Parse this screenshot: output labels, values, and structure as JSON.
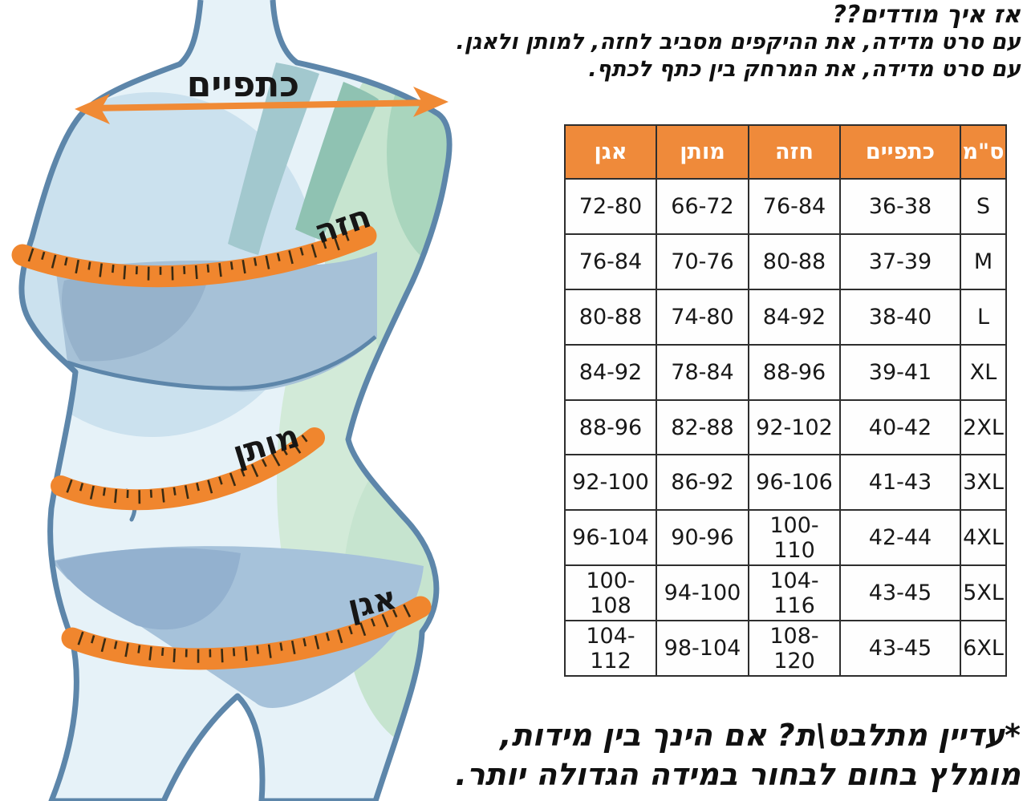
{
  "top_note": {
    "lines": [
      "אז איך מודדים??",
      "עם סרט מדידה, את ההיקפים מסביב לחזה, למותן ולאגן.",
      "עם סרט מדידה, את המרחק בין כתף לכתף."
    ]
  },
  "figure": {
    "labels": {
      "shoulders": "כתפיים",
      "chest": "חזה",
      "waist": "מותן",
      "hips": "אגן"
    },
    "tape_color": "#f0862e",
    "arrow_color": "#f08a35",
    "body_outline_color": "#5d86aa"
  },
  "size_table": {
    "header_bg": "#ef8a3a",
    "header": {
      "hips": "אגן",
      "waist": "מותן",
      "chest": "חזה",
      "shoulders": "כתפיים",
      "unit": "ס\"מ"
    },
    "rows": [
      {
        "hips": "72-80",
        "waist": "66-72",
        "chest": "76-84",
        "shoulders": "36-38",
        "size": "S"
      },
      {
        "hips": "76-84",
        "waist": "70-76",
        "chest": "80-88",
        "shoulders": "37-39",
        "size": "M"
      },
      {
        "hips": "80-88",
        "waist": "74-80",
        "chest": "84-92",
        "shoulders": "38-40",
        "size": "L"
      },
      {
        "hips": "84-92",
        "waist": "78-84",
        "chest": "88-96",
        "shoulders": "39-41",
        "size": "XL"
      },
      {
        "hips": "88-96",
        "waist": "82-88",
        "chest": "92-102",
        "shoulders": "40-42",
        "size": "2XL"
      },
      {
        "hips": "92-100",
        "waist": "86-92",
        "chest": "96-106",
        "shoulders": "41-43",
        "size": "3XL"
      },
      {
        "hips": "96-104",
        "waist": "90-96",
        "chest": "100-110",
        "shoulders": "42-44",
        "size": "4XL"
      },
      {
        "hips": "100-108",
        "waist": "94-100",
        "chest": "104-116",
        "shoulders": "43-45",
        "size": "5XL"
      },
      {
        "hips": "104-112",
        "waist": "98-104",
        "chest": "108-120",
        "shoulders": "43-45",
        "size": "6XL"
      }
    ]
  },
  "footer_note": {
    "lines": [
      "*עדיין מתלבט\\ת? אם הינך בין מידות,",
      "מומלץ בחום לבחור במידה הגדולה יותר."
    ]
  }
}
